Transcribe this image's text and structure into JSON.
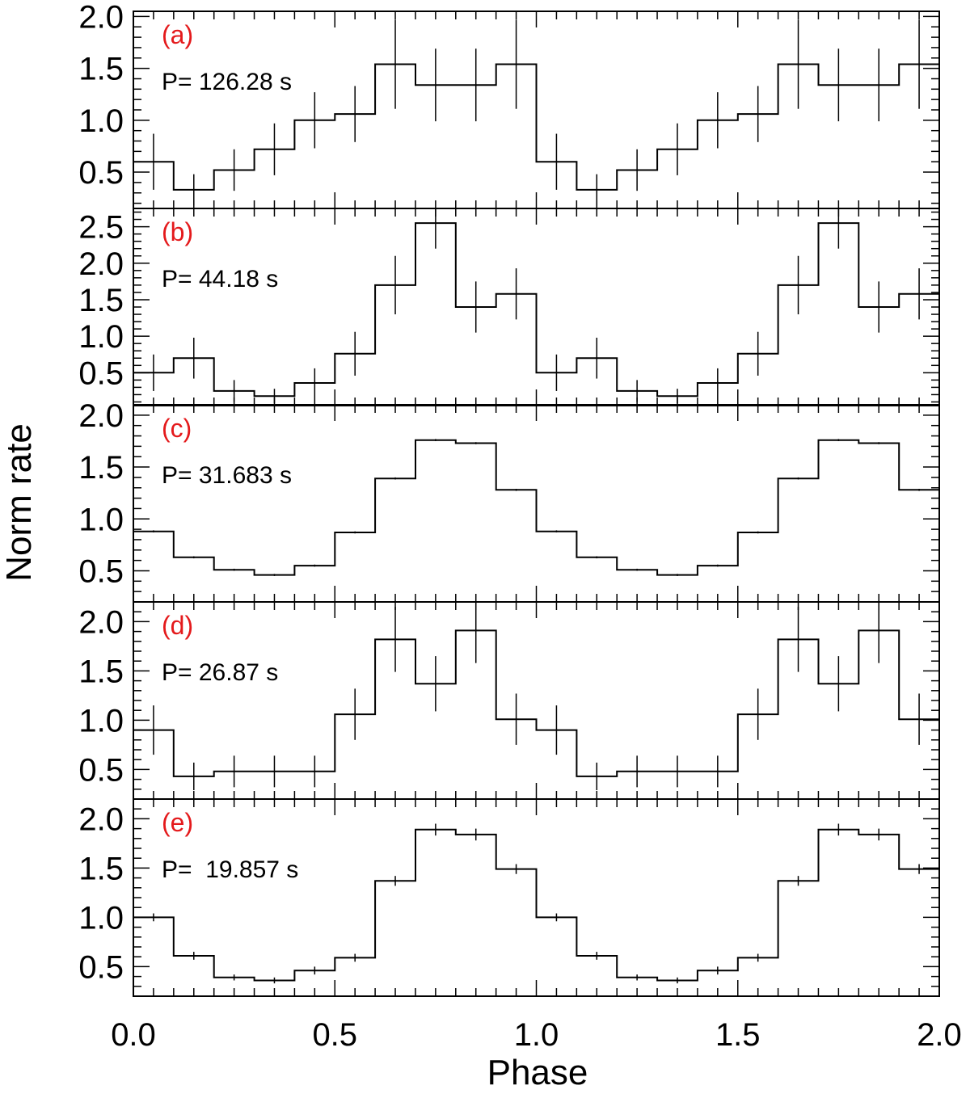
{
  "chart_data": {
    "type": "line",
    "xlabel": "Phase",
    "ylabel": "Norm rate",
    "xlim": [
      0,
      2
    ],
    "x_ticks": [
      "0.0",
      "0.5",
      "1.0",
      "1.5",
      "2.0"
    ],
    "label_color": "#e41a1c",
    "bins_per_cycle": 10,
    "panels": [
      {
        "label": "(a)",
        "period": "P= 126.28 s",
        "ylim": [
          0.15,
          2.05
        ],
        "y_ticks": [
          "0.5",
          "1.0",
          "1.5",
          "2.0"
        ],
        "y_tick_values": [
          0.5,
          1.0,
          1.5,
          2.0
        ],
        "values": [
          0.6,
          0.33,
          0.52,
          0.72,
          1.0,
          1.06,
          1.54,
          1.34,
          1.34,
          1.54
        ],
        "errors": [
          0.27,
          0.15,
          0.2,
          0.25,
          0.27,
          0.27,
          0.43,
          0.35,
          0.35,
          0.43
        ]
      },
      {
        "label": "(b)",
        "period": "P= 44.18 s",
        "ylim": [
          0.05,
          2.75
        ],
        "y_ticks": [
          "0.5",
          "1.0",
          "1.5",
          "2.0",
          "2.5"
        ],
        "y_tick_values": [
          0.5,
          1.0,
          1.5,
          2.0,
          2.5
        ],
        "values": [
          0.5,
          0.7,
          0.25,
          0.18,
          0.36,
          0.76,
          1.7,
          2.55,
          1.4,
          1.58
        ],
        "errors": [
          0.25,
          0.28,
          0.15,
          0.1,
          0.2,
          0.3,
          0.4,
          0.35,
          0.35,
          0.35
        ]
      },
      {
        "label": "(c)",
        "period": "P= 31.683 s",
        "ylim": [
          0.2,
          2.1
        ],
        "y_ticks": [
          "0.5",
          "1.0",
          "1.5",
          "2.0"
        ],
        "y_tick_values": [
          0.5,
          1.0,
          1.5,
          2.0
        ],
        "values": [
          0.88,
          0.63,
          0.51,
          0.46,
          0.55,
          0.87,
          1.39,
          1.76,
          1.73,
          1.28
        ],
        "errors": [
          0.01,
          0.01,
          0.01,
          0.01,
          0.01,
          0.01,
          0.01,
          0.01,
          0.01,
          0.01
        ]
      },
      {
        "label": "(d)",
        "period": "P= 26.87 s",
        "ylim": [
          0.2,
          2.2
        ],
        "y_ticks": [
          "0.5",
          "1.0",
          "1.5",
          "2.0"
        ],
        "y_tick_values": [
          0.5,
          1.0,
          1.5,
          2.0
        ],
        "values": [
          0.9,
          0.43,
          0.48,
          0.48,
          0.48,
          1.06,
          1.82,
          1.37,
          1.91,
          1.01
        ],
        "errors": [
          0.25,
          0.14,
          0.16,
          0.16,
          0.16,
          0.26,
          0.33,
          0.28,
          0.33,
          0.26
        ]
      },
      {
        "label": "(e)",
        "period": "P=  19.857 s",
        "ylim": [
          0.2,
          2.2
        ],
        "y_ticks": [
          "0.5",
          "1.0",
          "1.5",
          "2.0"
        ],
        "y_tick_values": [
          0.5,
          1.0,
          1.5,
          2.0
        ],
        "values": [
          1.0,
          0.61,
          0.39,
          0.36,
          0.46,
          0.59,
          1.37,
          1.89,
          1.84,
          1.49
        ],
        "errors": [
          0.04,
          0.04,
          0.03,
          0.03,
          0.04,
          0.04,
          0.05,
          0.06,
          0.06,
          0.05
        ]
      }
    ]
  }
}
